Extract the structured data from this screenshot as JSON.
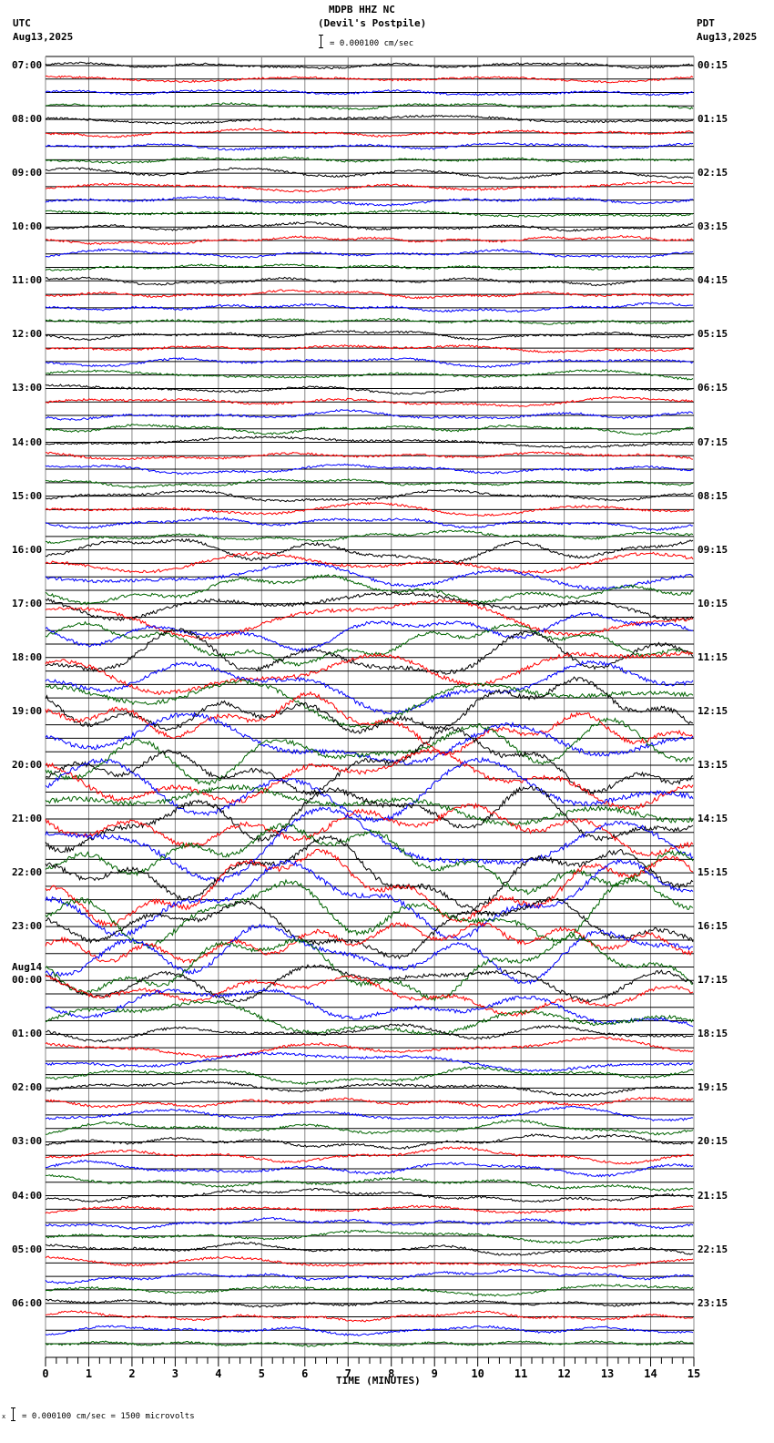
{
  "header": {
    "station": "MDPB HHZ NC",
    "location": "(Devil's Postpile)",
    "scale_text": "= 0.000100 cm/sec",
    "left_tz": "UTC",
    "left_date": "Aug13,2025",
    "right_tz": "PDT",
    "right_date": "Aug13,2025"
  },
  "footer": {
    "scale_prefix": "x",
    "scale_text": "= 0.000100 cm/sec =    1500 microvolts"
  },
  "chart_data": {
    "type": "line",
    "title": "MDPB HHZ NC (Devil's Postpile)",
    "subtitle": "Helicorder seismogram, 1 scale unit = 0.000100 cm/sec",
    "xlabel": "TIME (MINUTES)",
    "ylabel": "",
    "x_ticks": [
      0,
      1,
      2,
      3,
      4,
      5,
      6,
      7,
      8,
      9,
      10,
      11,
      12,
      13,
      14,
      15
    ],
    "xlim": [
      0,
      15
    ],
    "grid": true,
    "traces_per_hour": 4,
    "trace_colors": [
      "#000000",
      "#ff0000",
      "#0000ff",
      "#006400"
    ],
    "left_labels": [
      "07:00",
      "08:00",
      "09:00",
      "10:00",
      "11:00",
      "12:00",
      "13:00",
      "14:00",
      "15:00",
      "16:00",
      "17:00",
      "18:00",
      "19:00",
      "20:00",
      "21:00",
      "22:00",
      "23:00",
      "00:00",
      "01:00",
      "02:00",
      "03:00",
      "04:00",
      "05:00",
      "06:00"
    ],
    "left_date_change": {
      "index": 17,
      "label": "Aug14"
    },
    "right_labels": [
      "00:15",
      "01:15",
      "02:15",
      "03:15",
      "04:15",
      "05:15",
      "06:15",
      "07:15",
      "08:15",
      "09:15",
      "10:15",
      "11:15",
      "12:15",
      "13:15",
      "14:15",
      "15:15",
      "16:15",
      "17:15",
      "18:15",
      "19:15",
      "20:15",
      "21:15",
      "22:15",
      "23:15"
    ],
    "activity_by_hour": [
      0.25,
      0.3,
      0.4,
      0.35,
      0.35,
      0.4,
      0.4,
      0.4,
      0.5,
      1.2,
      1.6,
      2.2,
      2.6,
      2.8,
      3.0,
      3.0,
      2.6,
      1.8,
      0.8,
      0.6,
      0.6,
      0.5,
      0.5,
      0.4
    ]
  }
}
